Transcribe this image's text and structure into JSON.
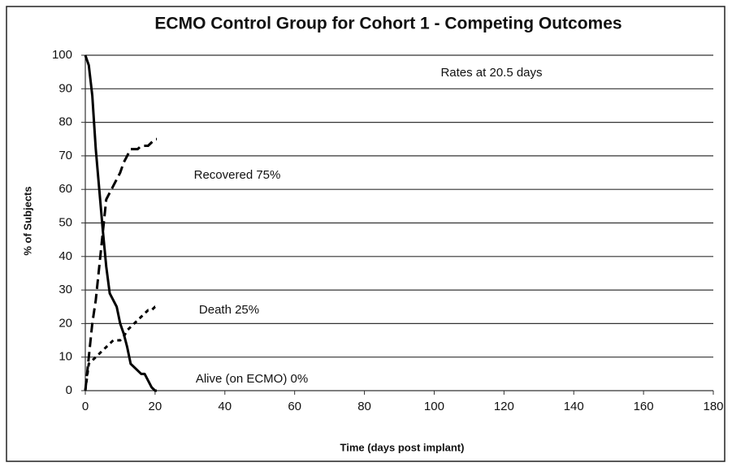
{
  "chart_data": {
    "type": "line",
    "title": "ECMO Control Group for Cohort 1 - Competing Outcomes",
    "x_label": "Time (days post implant)",
    "y_label": "% of Subjects",
    "annotations": [
      "Rates at 20.5 days",
      "Recovered 75%",
      "Death 25%",
      "Alive (on ECMO) 0%"
    ],
    "x": [
      0,
      1,
      2,
      3,
      4,
      5,
      6,
      7,
      8,
      9,
      10,
      11,
      12,
      13,
      14,
      15,
      16,
      17,
      18,
      19,
      20,
      20.5
    ],
    "series": [
      {
        "color": "#000000",
        "style": "solid",
        "values": [
          100,
          97,
          88,
          72,
          60,
          48,
          37,
          29,
          27,
          25,
          20,
          17,
          13,
          8,
          7,
          6,
          5,
          5,
          3,
          1,
          0,
          0
        ]
      },
      {
        "color": "#000000",
        "style": "dashed",
        "values": [
          0,
          10,
          20,
          27,
          37,
          47,
          57,
          59,
          61,
          63,
          65,
          68,
          70,
          72,
          72,
          72,
          73,
          73,
          73,
          74,
          75,
          75
        ]
      },
      {
        "color": "#000000",
        "style": "dotted",
        "values": [
          0,
          8,
          9,
          10,
          11,
          12,
          13,
          14,
          15,
          15,
          15,
          16,
          18,
          19,
          20,
          21,
          22,
          23,
          24,
          24,
          25,
          25
        ]
      }
    ],
    "xlim": [
      0,
      180
    ],
    "xticks": [
      0,
      20,
      40,
      60,
      80,
      100,
      120,
      140,
      160,
      180
    ],
    "ylim": [
      0,
      100
    ],
    "yticks": [
      0,
      10,
      20,
      30,
      40,
      50,
      60,
      70,
      80,
      90,
      100
    ],
    "grid": true
  }
}
